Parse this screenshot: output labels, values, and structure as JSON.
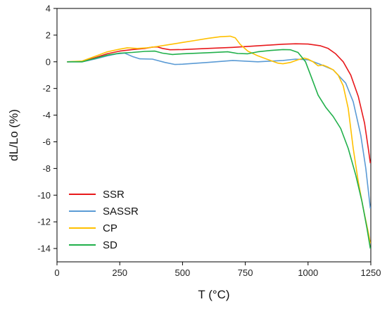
{
  "chart_data": {
    "type": "line",
    "title": "",
    "xlabel": "T (°C)",
    "ylabel": "dL/Lo (%)",
    "xlim": [
      0,
      1250
    ],
    "ylim": [
      -15,
      4
    ],
    "xticks": [
      0,
      250,
      500,
      750,
      1000,
      1250
    ],
    "yticks": [
      4,
      2,
      0,
      -2,
      -4,
      -6,
      -8,
      -10,
      -12,
      -14
    ],
    "grid": false,
    "legend_position": "bottom-left",
    "series": [
      {
        "name": "SSR",
        "color": "#e8191c",
        "points": [
          [
            40,
            0
          ],
          [
            100,
            0.02
          ],
          [
            150,
            0.3
          ],
          [
            200,
            0.6
          ],
          [
            250,
            0.8
          ],
          [
            300,
            0.92
          ],
          [
            350,
            1.0
          ],
          [
            380,
            1.1
          ],
          [
            400,
            1.12
          ],
          [
            420,
            1.0
          ],
          [
            450,
            0.9
          ],
          [
            500,
            0.92
          ],
          [
            600,
            1.0
          ],
          [
            700,
            1.08
          ],
          [
            800,
            1.2
          ],
          [
            900,
            1.32
          ],
          [
            950,
            1.35
          ],
          [
            1000,
            1.33
          ],
          [
            1050,
            1.2
          ],
          [
            1080,
            1.0
          ],
          [
            1110,
            0.6
          ],
          [
            1140,
            0.0
          ],
          [
            1170,
            -1.0
          ],
          [
            1200,
            -2.6
          ],
          [
            1225,
            -4.6
          ],
          [
            1240,
            -6.5
          ],
          [
            1248,
            -7.6
          ]
        ]
      },
      {
        "name": "SASSR",
        "color": "#5b9bd5",
        "points": [
          [
            40,
            0
          ],
          [
            100,
            0.0
          ],
          [
            150,
            0.2
          ],
          [
            200,
            0.45
          ],
          [
            240,
            0.6
          ],
          [
            270,
            0.65
          ],
          [
            300,
            0.4
          ],
          [
            330,
            0.22
          ],
          [
            380,
            0.2
          ],
          [
            400,
            0.1
          ],
          [
            430,
            -0.05
          ],
          [
            470,
            -0.2
          ],
          [
            500,
            -0.18
          ],
          [
            600,
            -0.05
          ],
          [
            700,
            0.1
          ],
          [
            800,
            0.0
          ],
          [
            900,
            0.1
          ],
          [
            950,
            0.2
          ],
          [
            1000,
            0.15
          ],
          [
            1050,
            -0.2
          ],
          [
            1100,
            -0.6
          ],
          [
            1150,
            -1.6
          ],
          [
            1180,
            -3.0
          ],
          [
            1210,
            -5.5
          ],
          [
            1230,
            -8.0
          ],
          [
            1248,
            -11.0
          ]
        ]
      },
      {
        "name": "CP",
        "color": "#ffc000",
        "points": [
          [
            40,
            0
          ],
          [
            100,
            0.05
          ],
          [
            150,
            0.4
          ],
          [
            200,
            0.75
          ],
          [
            250,
            0.95
          ],
          [
            280,
            1.05
          ],
          [
            320,
            1.0
          ],
          [
            360,
            1.05
          ],
          [
            400,
            1.15
          ],
          [
            450,
            1.3
          ],
          [
            500,
            1.45
          ],
          [
            550,
            1.6
          ],
          [
            600,
            1.75
          ],
          [
            650,
            1.88
          ],
          [
            690,
            1.92
          ],
          [
            710,
            1.8
          ],
          [
            730,
            1.3
          ],
          [
            760,
            0.8
          ],
          [
            800,
            0.45
          ],
          [
            850,
            0.1
          ],
          [
            880,
            -0.1
          ],
          [
            900,
            -0.15
          ],
          [
            930,
            -0.05
          ],
          [
            960,
            0.15
          ],
          [
            985,
            0.28
          ],
          [
            1000,
            0.2
          ],
          [
            1020,
            0.0
          ],
          [
            1040,
            -0.3
          ],
          [
            1060,
            -0.25
          ],
          [
            1080,
            -0.4
          ],
          [
            1100,
            -0.6
          ],
          [
            1120,
            -1.0
          ],
          [
            1140,
            -1.8
          ],
          [
            1160,
            -3.5
          ],
          [
            1180,
            -6.5
          ],
          [
            1200,
            -9.0
          ],
          [
            1220,
            -11.0
          ],
          [
            1240,
            -12.8
          ],
          [
            1248,
            -13.6
          ]
        ]
      },
      {
        "name": "SD",
        "color": "#21b04b",
        "points": [
          [
            40,
            0
          ],
          [
            100,
            0.0
          ],
          [
            150,
            0.25
          ],
          [
            200,
            0.5
          ],
          [
            250,
            0.65
          ],
          [
            300,
            0.7
          ],
          [
            350,
            0.78
          ],
          [
            390,
            0.8
          ],
          [
            420,
            0.65
          ],
          [
            460,
            0.55
          ],
          [
            500,
            0.6
          ],
          [
            600,
            0.68
          ],
          [
            680,
            0.75
          ],
          [
            720,
            0.62
          ],
          [
            760,
            0.6
          ],
          [
            800,
            0.75
          ],
          [
            850,
            0.85
          ],
          [
            900,
            0.92
          ],
          [
            930,
            0.9
          ],
          [
            960,
            0.7
          ],
          [
            990,
            0.0
          ],
          [
            1010,
            -1.0
          ],
          [
            1040,
            -2.5
          ],
          [
            1070,
            -3.4
          ],
          [
            1100,
            -4.1
          ],
          [
            1130,
            -5.0
          ],
          [
            1160,
            -6.5
          ],
          [
            1190,
            -8.5
          ],
          [
            1215,
            -10.5
          ],
          [
            1235,
            -12.5
          ],
          [
            1248,
            -14.0
          ]
        ]
      }
    ]
  }
}
